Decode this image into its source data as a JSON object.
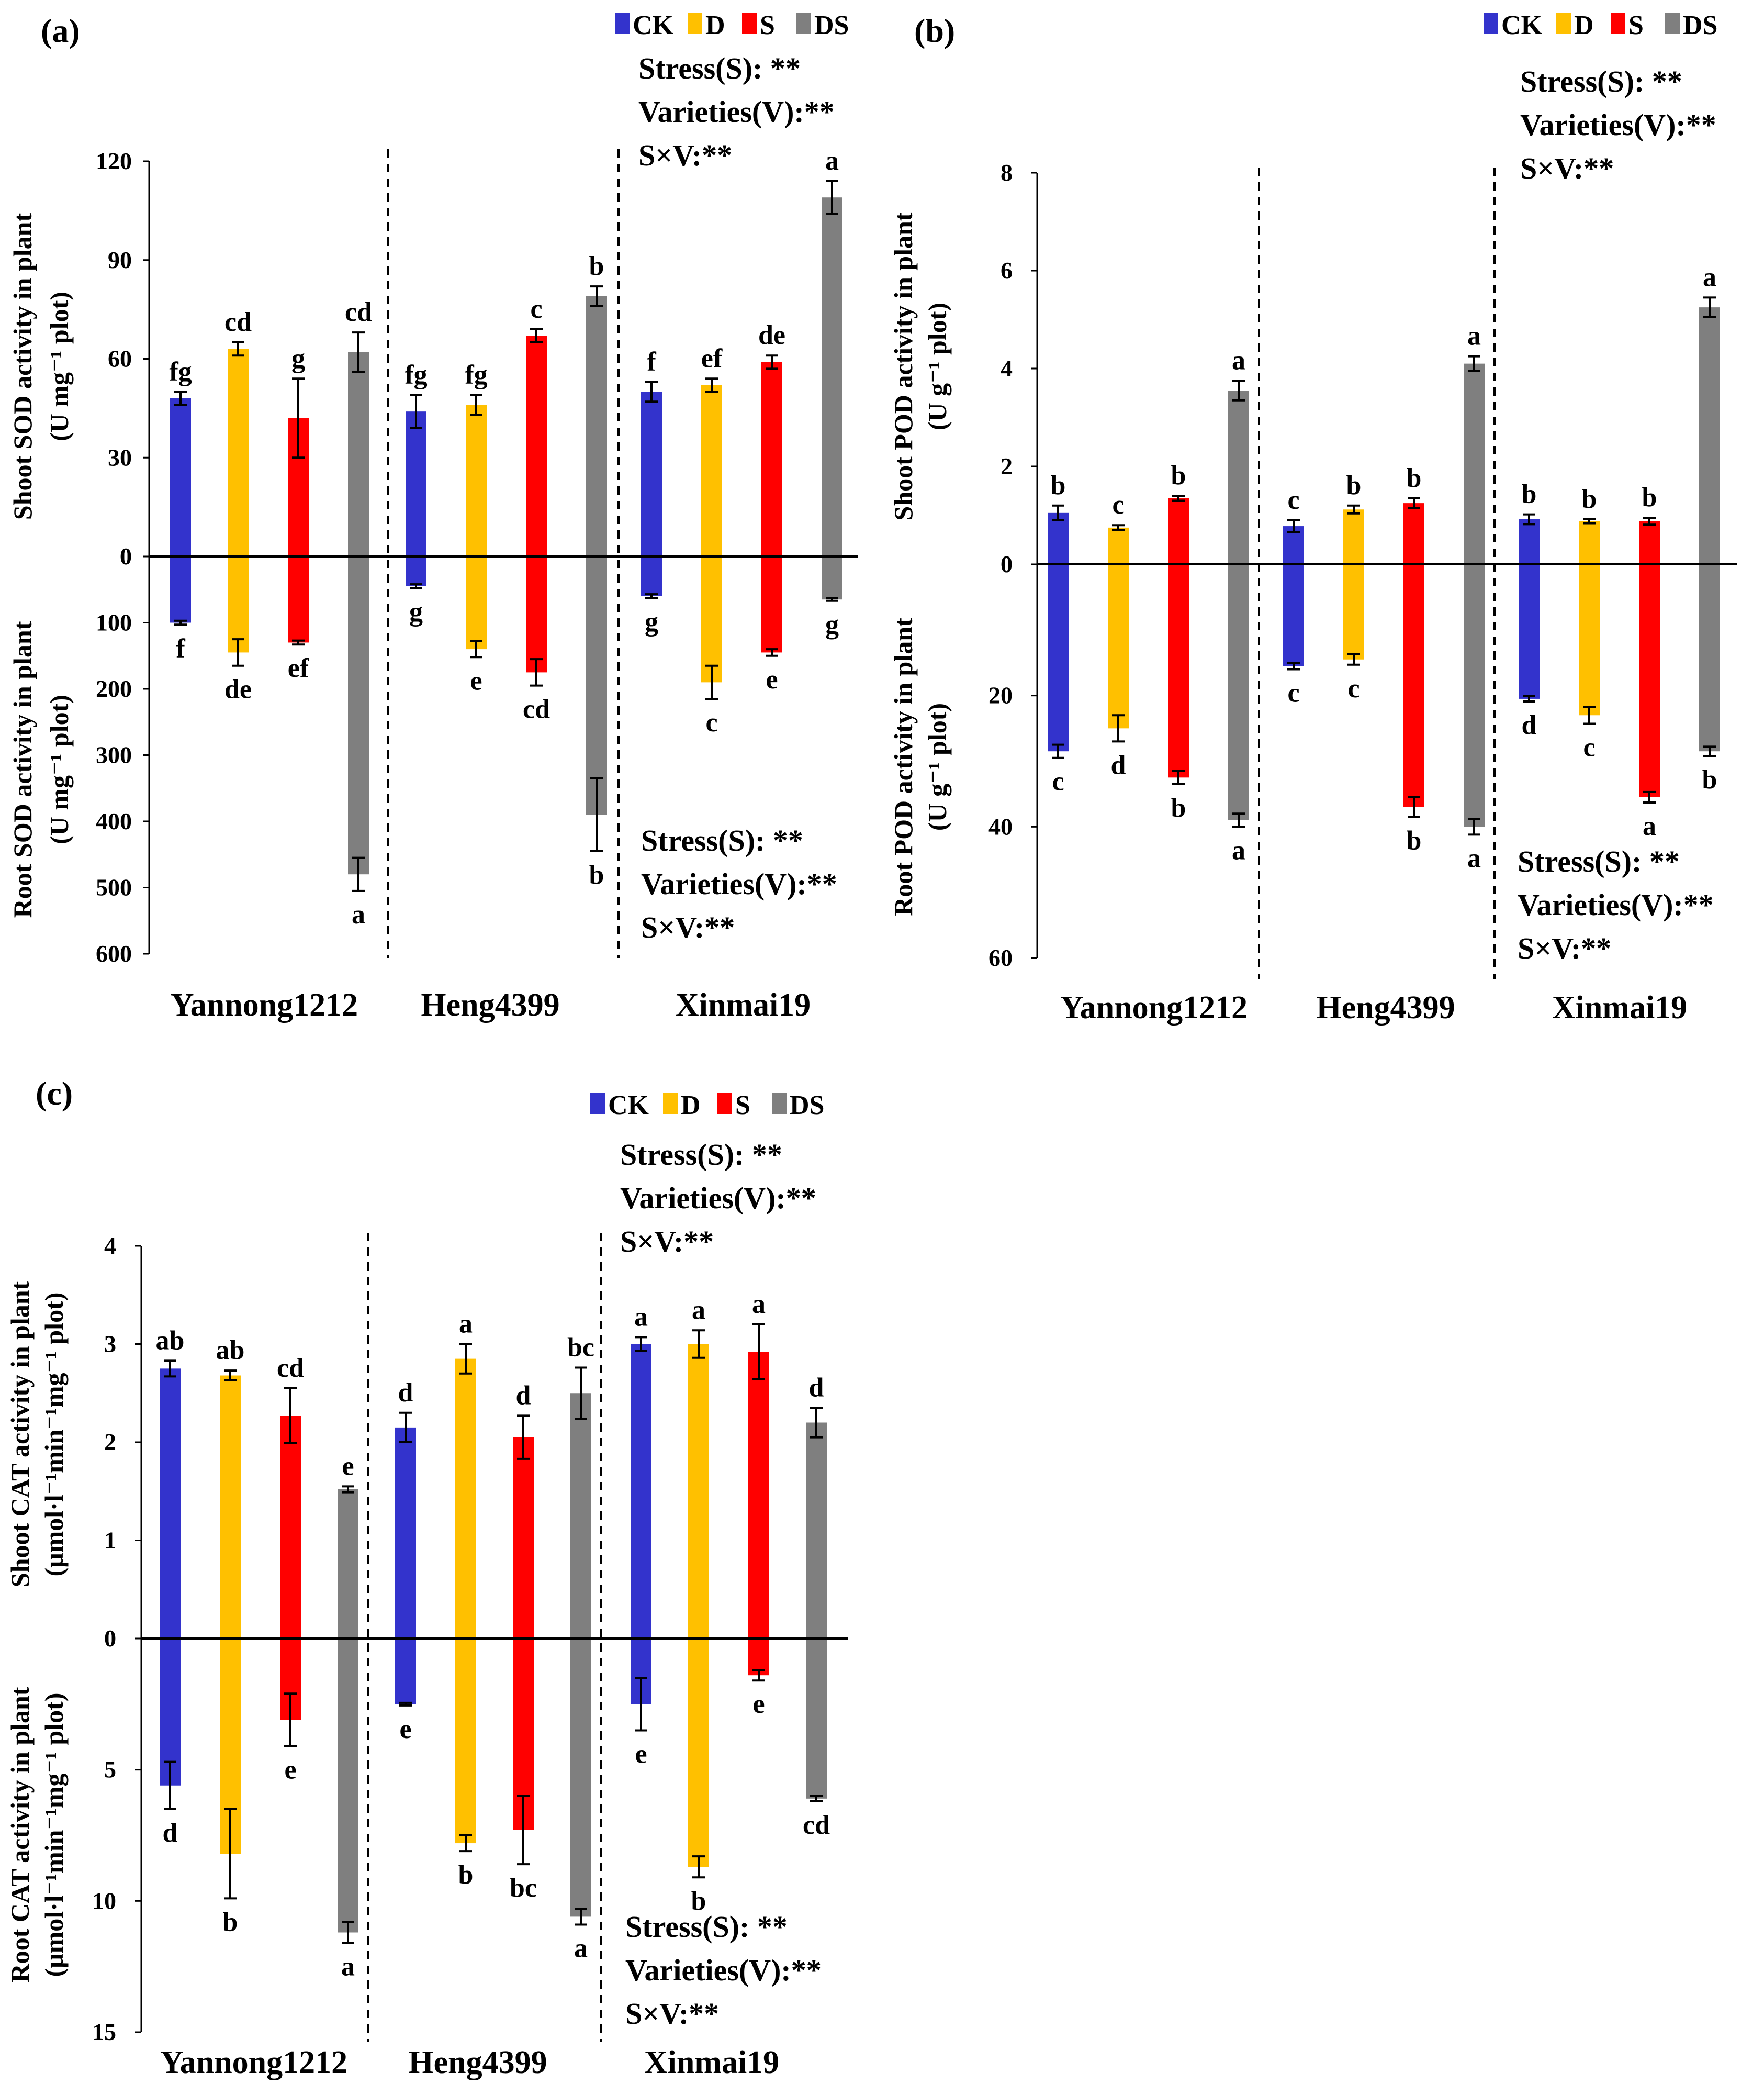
{
  "colors": {
    "CK": "#3333CC",
    "D": "#FFC000",
    "S": "#FF0000",
    "DS": "#7F7F7F"
  },
  "legend_labels": [
    "CK",
    "D",
    "S",
    "DS"
  ],
  "panels": [
    {
      "panel_label": "(a)",
      "ylabel_top": [
        "Shoot SOD activity in plant",
        "(U mg⁻¹ plot)"
      ],
      "ylabel_bottom": [
        "Root SOD activity in plant",
        "(U mg⁻¹ plot)"
      ],
      "stats_top": [
        "Stress(S):   **",
        "Varieties(V):**",
        "S×V:**"
      ],
      "stats_bottom": [
        "Stress(S):   **",
        "Varieties(V):**",
        "S×V:**"
      ]
    },
    {
      "panel_label": "(b)",
      "ylabel_top": [
        "Shoot POD activity in plant",
        "(U g⁻¹ plot)"
      ],
      "ylabel_bottom": [
        "Root POD activity in plant",
        "(U g⁻¹ plot)"
      ],
      "stats_top": [
        "Stress(S):   **",
        "Varieties(V):**",
        "S×V:**"
      ],
      "stats_bottom": [
        "Stress(S):   **",
        "Varieties(V):**",
        "S×V:**"
      ]
    },
    {
      "panel_label": "(c)",
      "ylabel_top": [
        "Shoot CAT activity in plant",
        "(μmol·l⁻¹min⁻¹mg⁻¹ plot)"
      ],
      "ylabel_bottom": [
        "Root CAT activity in plant",
        "(μmol·l⁻¹min⁻¹mg⁻¹ plot)"
      ],
      "stats_top": [
        "Stress(S):   **",
        "Varieties(V):**",
        "S×V:**"
      ],
      "stats_bottom": [
        "Stress(S):   **",
        "Varieties(V):**",
        "S×V:**"
      ]
    }
  ],
  "chart_data": [
    {
      "type": "bar",
      "title": "(a)",
      "categories": [
        "Yannong1212",
        "Heng4399",
        "Xinmai19"
      ],
      "series_names": [
        "CK",
        "D",
        "S",
        "DS"
      ],
      "shoot": {
        "ylim": [
          0,
          120
        ],
        "ticks": [
          0,
          30,
          60,
          90,
          120
        ],
        "tick_labels": [
          "0",
          "30",
          "60",
          "90",
          "120"
        ],
        "values": [
          [
            48,
            63,
            42,
            62
          ],
          [
            44,
            46,
            67,
            79
          ],
          [
            50,
            52,
            59,
            109
          ]
        ],
        "errors": [
          [
            2,
            2,
            12,
            6
          ],
          [
            5,
            3,
            2,
            3
          ],
          [
            3,
            2,
            2,
            5
          ]
        ],
        "letters": [
          [
            "fg",
            "cd",
            "g",
            "cd"
          ],
          [
            "fg",
            "fg",
            "c",
            "b"
          ],
          [
            "f",
            "ef",
            "de",
            "a"
          ]
        ]
      },
      "root": {
        "ylim": [
          0,
          600
        ],
        "ticks": [
          100,
          200,
          300,
          400,
          500,
          600
        ],
        "tick_labels": [
          "100",
          "200",
          "300",
          "400",
          "500",
          "600"
        ],
        "values": [
          [
            100,
            145,
            130,
            480
          ],
          [
            45,
            140,
            175,
            390
          ],
          [
            60,
            190,
            145,
            65
          ]
        ],
        "errors": [
          [
            3,
            20,
            3,
            25
          ],
          [
            3,
            12,
            20,
            55
          ],
          [
            3,
            25,
            5,
            2
          ]
        ],
        "letters": [
          [
            "f",
            "de",
            "ef",
            "a"
          ],
          [
            "g",
            "e",
            "cd",
            "b"
          ],
          [
            "g",
            "c",
            "e",
            "g"
          ]
        ]
      }
    },
    {
      "type": "bar",
      "title": "(b)",
      "categories": [
        "Yannong1212",
        "Heng4399",
        "Xinmai19"
      ],
      "series_names": [
        "CK",
        "D",
        "S",
        "DS"
      ],
      "shoot": {
        "ylim": [
          0,
          8
        ],
        "ticks": [
          0,
          2,
          4,
          6,
          8
        ],
        "tick_labels": [
          "0",
          "2",
          "4",
          "6",
          "8"
        ],
        "values": [
          [
            1.05,
            0.75,
            1.35,
            3.55
          ],
          [
            0.78,
            1.12,
            1.25,
            4.1
          ],
          [
            0.92,
            0.88,
            0.88,
            5.25
          ]
        ],
        "errors": [
          [
            0.15,
            0.05,
            0.05,
            0.2
          ],
          [
            0.12,
            0.08,
            0.1,
            0.15
          ],
          [
            0.1,
            0.04,
            0.07,
            0.2
          ]
        ],
        "letters": [
          [
            "b",
            "c",
            "b",
            "a"
          ],
          [
            "c",
            "b",
            "b",
            "a"
          ],
          [
            "b",
            "b",
            "b",
            "a"
          ]
        ]
      },
      "root": {
        "ylim": [
          0,
          60
        ],
        "ticks": [
          20,
          40,
          60
        ],
        "tick_labels": [
          "20",
          "40",
          "60"
        ],
        "values": [
          [
            28.5,
            25,
            32.5,
            39
          ],
          [
            15.5,
            14.5,
            37,
            40
          ],
          [
            20.5,
            23,
            35.5,
            28.5
          ]
        ],
        "errors": [
          [
            1,
            2,
            1,
            1
          ],
          [
            0.5,
            0.8,
            1.5,
            1.2
          ],
          [
            0.4,
            1.3,
            0.8,
            0.7
          ]
        ],
        "letters": [
          [
            "c",
            "d",
            "b",
            "a"
          ],
          [
            "c",
            "c",
            "b",
            "a"
          ],
          [
            "d",
            "c",
            "a",
            "b"
          ]
        ]
      }
    },
    {
      "type": "bar",
      "title": "(c)",
      "categories": [
        "Yannong1212",
        "Heng4399",
        "Xinmai19"
      ],
      "series_names": [
        "CK",
        "D",
        "S",
        "DS"
      ],
      "shoot": {
        "ylim": [
          0,
          4
        ],
        "ticks": [
          0,
          1,
          2,
          3,
          4
        ],
        "tick_labels": [
          "0",
          "1",
          "2",
          "3",
          "4"
        ],
        "values": [
          [
            2.75,
            2.68,
            2.27,
            1.52
          ],
          [
            2.15,
            2.85,
            2.05,
            2.5
          ],
          [
            3.0,
            3.0,
            2.92,
            2.2
          ]
        ],
        "errors": [
          [
            0.08,
            0.05,
            0.28,
            0.03
          ],
          [
            0.15,
            0.15,
            0.22,
            0.26
          ],
          [
            0.07,
            0.14,
            0.28,
            0.15
          ]
        ],
        "letters": [
          [
            "ab",
            "ab",
            "cd",
            "e"
          ],
          [
            "d",
            "a",
            "d",
            "bc"
          ],
          [
            "a",
            "a",
            "a",
            "d"
          ]
        ]
      },
      "root": {
        "ylim": [
          0,
          15
        ],
        "ticks": [
          5,
          10,
          15
        ],
        "tick_labels": [
          "5",
          "10",
          "15"
        ],
        "values": [
          [
            5.6,
            8.2,
            3.1,
            11.2
          ],
          [
            2.5,
            7.8,
            7.3,
            10.6
          ],
          [
            2.5,
            8.7,
            1.4,
            6.1
          ]
        ],
        "errors": [
          [
            0.9,
            1.7,
            1.0,
            0.4
          ],
          [
            0.05,
            0.3,
            1.3,
            0.3
          ],
          [
            1.0,
            0.4,
            0.2,
            0.1
          ]
        ],
        "letters": [
          [
            "d",
            "b",
            "e",
            "a"
          ],
          [
            "e",
            "b",
            "bc",
            "a"
          ],
          [
            "e",
            "b",
            "e",
            "cd"
          ]
        ]
      }
    }
  ]
}
